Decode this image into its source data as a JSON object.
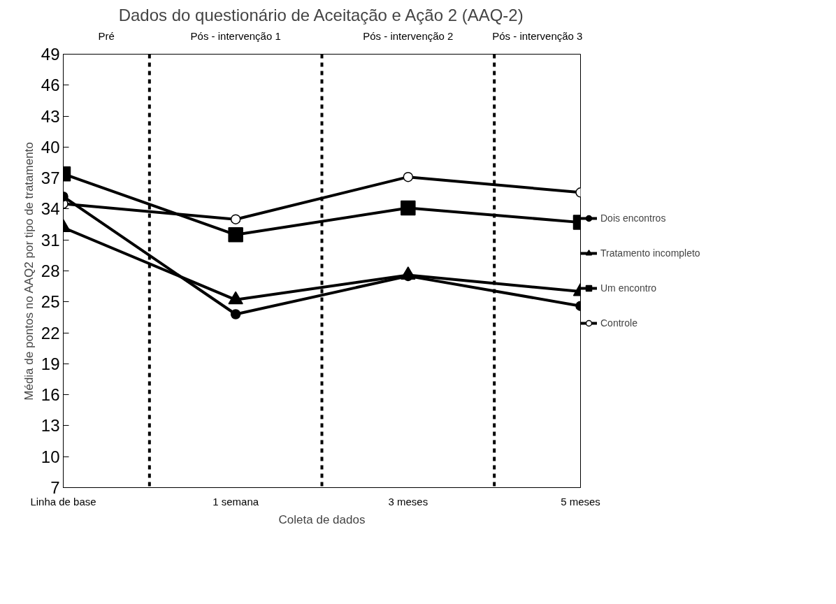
{
  "chart_data": {
    "type": "line",
    "title": "Dados do questionário de Aceitação e Ação 2 (AAQ-2)",
    "xlabel": "Coleta de dados",
    "ylabel": "Média de pontos no AAQ2 por tipo de tratamento",
    "categories": [
      "Linha de base",
      "1 semana",
      "3 meses",
      "5 meses"
    ],
    "ylim": [
      7,
      49
    ],
    "yticks": [
      7,
      10,
      13,
      16,
      19,
      22,
      25,
      28,
      31,
      34,
      37,
      40,
      43,
      46,
      49
    ],
    "grid": false,
    "legend": "right",
    "line_style": "solid",
    "series": [
      {
        "name": "Dois encontros",
        "color": "#000000",
        "marker": "circle",
        "values": [
          35.2,
          23.8,
          27.5,
          24.6
        ]
      },
      {
        "name": "Tratamento incompleto",
        "color": "#000000",
        "marker": "triangle",
        "values": [
          32.2,
          25.2,
          27.6,
          26.0
        ]
      },
      {
        "name": "Um encontro",
        "color": "#000000",
        "marker": "square",
        "values": [
          37.4,
          31.5,
          34.1,
          32.7
        ]
      },
      {
        "name": "Controle",
        "color": "#000000",
        "marker": "circle",
        "colors": [
          "#ffffff",
          "#ffffff",
          "#ffffff",
          "#ffffff"
        ],
        "values": [
          34.5,
          33.0,
          37.1,
          35.6
        ]
      }
    ],
    "annotations": [
      "Pré",
      "Pós - intervenção 1",
      "Pós - intervenção 2",
      "Pós - intervenção 3"
    ]
  }
}
